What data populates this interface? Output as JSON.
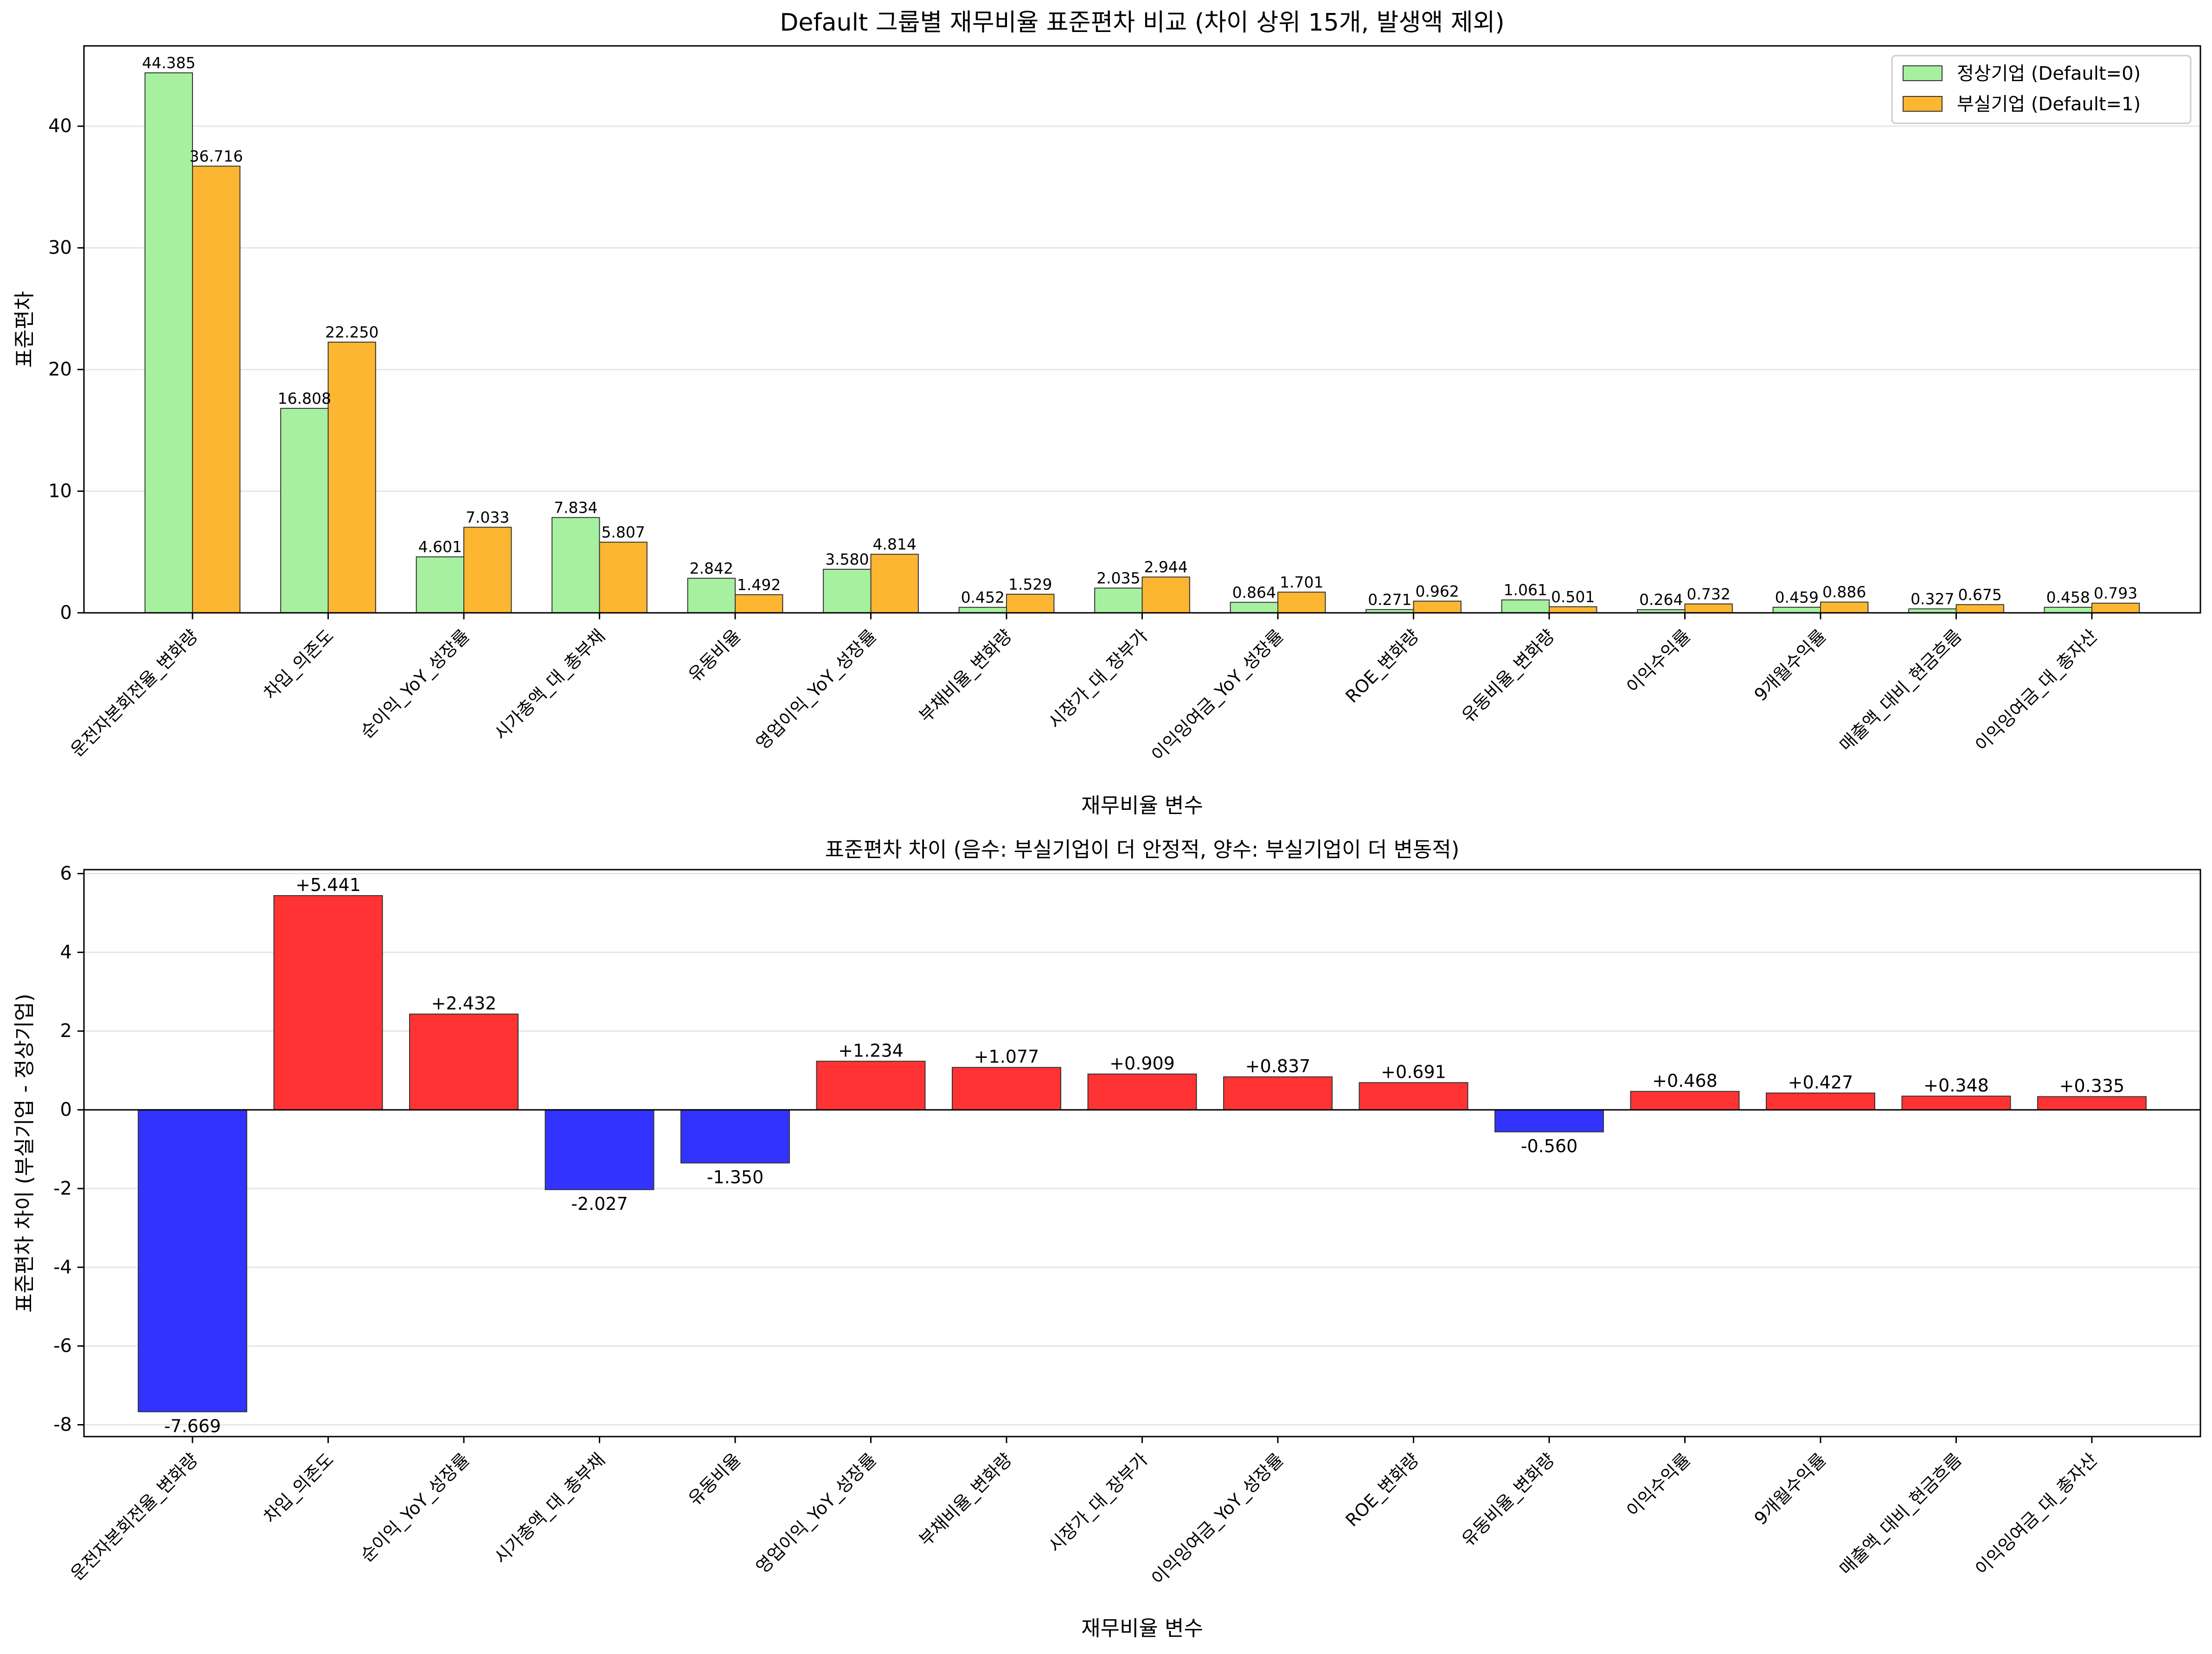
{
  "chart_data": [
    {
      "type": "bar",
      "title": "Default 그룹별 재무비율 표준편차 비교 (차이 상위 15개, 발생액 제외)",
      "xlabel": "재무비율 변수",
      "ylabel": "표준편차",
      "ylim": [
        0,
        46.6
      ],
      "yticks": [
        0,
        10,
        20,
        30,
        40
      ],
      "grid": "y",
      "legend_position": "top-right",
      "categories": [
        "운전자본회전율_변화량",
        "차입_의존도",
        "순이익_YoY_성장률",
        "시가총액_대_총부채",
        "유동비율",
        "영업이익_YoY_성장률",
        "부채비율_변화량",
        "시장가_대_장부가",
        "이익잉여금_YoY_성장률",
        "ROE_변화량",
        "유동비율_변화량",
        "이익수익률",
        "9개월수익률",
        "매출액_대비_현금흐름",
        "이익잉여금_대_총자산"
      ],
      "series": [
        {
          "name": "정상기업 (Default=0)",
          "color": "#a6f0a0",
          "values": [
            44.385,
            16.808,
            4.601,
            7.834,
            2.842,
            3.58,
            0.452,
            2.035,
            0.864,
            0.271,
            1.061,
            0.264,
            0.459,
            0.327,
            0.458
          ],
          "labels": [
            "44.385",
            "16.808",
            "4.601",
            "7.834",
            "2.842",
            "3.580",
            "0.452",
            "2.035",
            "0.864",
            "0.271",
            "1.061",
            "0.264",
            "0.459",
            "0.327",
            "0.458"
          ]
        },
        {
          "name": "부실기업 (Default=1)",
          "color": "#fdb631",
          "values": [
            36.716,
            22.25,
            7.033,
            5.807,
            1.492,
            4.814,
            1.529,
            2.944,
            1.701,
            0.962,
            0.501,
            0.732,
            0.886,
            0.675,
            0.793
          ],
          "labels": [
            "36.716",
            "22.250",
            "7.033",
            "5.807",
            "1.492",
            "4.814",
            "1.529",
            "2.944",
            "1.701",
            "0.962",
            "0.501",
            "0.732",
            "0.886",
            "0.675",
            "0.793"
          ]
        }
      ]
    },
    {
      "type": "bar",
      "title": "표준편차 차이 (음수: 부실기업이 더 안정적, 양수: 부실기업이 더 변동적)",
      "xlabel": "재무비율 변수",
      "ylabel": "표준편차 차이 (부실기업 - 정상기업)",
      "ylim": [
        -8.3,
        6.1
      ],
      "yticks": [
        -8,
        -6,
        -4,
        -2,
        0,
        2,
        4,
        6
      ],
      "grid": "y",
      "positive_color": "#ff3333",
      "negative_color": "#3333ff",
      "categories": [
        "운전자본회전율_변화량",
        "차입_의존도",
        "순이익_YoY_성장률",
        "시가총액_대_총부채",
        "유동비율",
        "영업이익_YoY_성장률",
        "부채비율_변화량",
        "시장가_대_장부가",
        "이익잉여금_YoY_성장률",
        "ROE_변화량",
        "유동비율_변화량",
        "이익수익률",
        "9개월수익률",
        "매출액_대비_현금흐름",
        "이익잉여금_대_총자산"
      ],
      "values": [
        -7.669,
        5.441,
        2.432,
        -2.027,
        -1.35,
        1.234,
        1.077,
        0.909,
        0.837,
        0.691,
        -0.56,
        0.468,
        0.427,
        0.348,
        0.335
      ],
      "labels": [
        "-7.669",
        "+5.441",
        "+2.432",
        "-2.027",
        "-1.350",
        "+1.234",
        "+1.077",
        "+0.909",
        "+0.837",
        "+0.691",
        "-0.560",
        "+0.468",
        "+0.427",
        "+0.348",
        "+0.335"
      ]
    }
  ]
}
